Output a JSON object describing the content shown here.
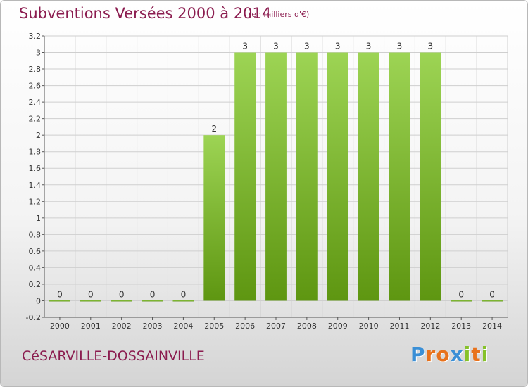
{
  "title": "Subventions Versées 2000 à 2014",
  "unit_note": "(en milliers d'€)",
  "commune": "CéSARVILLE-DOSSAINVILLE",
  "brand": {
    "letters": [
      "P",
      "r",
      "o",
      "x",
      "i",
      "t",
      "i"
    ],
    "colors": [
      "#3a8fd6",
      "#e8721c",
      "#e8721c",
      "#3a8fd6",
      "#86c22a",
      "#e8721c",
      "#86c22a"
    ]
  },
  "colors": {
    "title": "#8b1c4f",
    "bar_top": "#9dd454",
    "bar_bottom": "#5e9611",
    "grid": "#cfcfcf",
    "axis_text": "#333333"
  },
  "chart_data": {
    "type": "bar",
    "title": "Subventions Versées 2000 à 2014",
    "ylabel": "",
    "xlabel": "",
    "categories": [
      "2000",
      "2001",
      "2002",
      "2003",
      "2004",
      "2005",
      "2006",
      "2007",
      "2008",
      "2009",
      "2010",
      "2011",
      "2012",
      "2013",
      "2014"
    ],
    "values": [
      0,
      0,
      0,
      0,
      0,
      2,
      3,
      3,
      3,
      3,
      3,
      3,
      3,
      0,
      0
    ],
    "value_labels": [
      "0",
      "0",
      "0",
      "0",
      "0",
      "2",
      "3",
      "3",
      "3",
      "3",
      "3",
      "3",
      "3",
      "0",
      "0"
    ],
    "ylim": [
      -0.2,
      3.2
    ],
    "yticks": [
      -0.2,
      0,
      0.2,
      0.4,
      0.6,
      0.8,
      1,
      1.2,
      1.4,
      1.6,
      1.8,
      2,
      2.2,
      2.4,
      2.6,
      2.8,
      3,
      3.2
    ],
    "ytick_labels": [
      "-0.2",
      "0",
      "0.2",
      "0.4",
      "0.6",
      "0.8",
      "1",
      "1.2",
      "1.4",
      "1.6",
      "1.8",
      "2",
      "2.2",
      "2.4",
      "2.6",
      "2.8",
      "3",
      "3.2"
    ],
    "grid": true
  }
}
